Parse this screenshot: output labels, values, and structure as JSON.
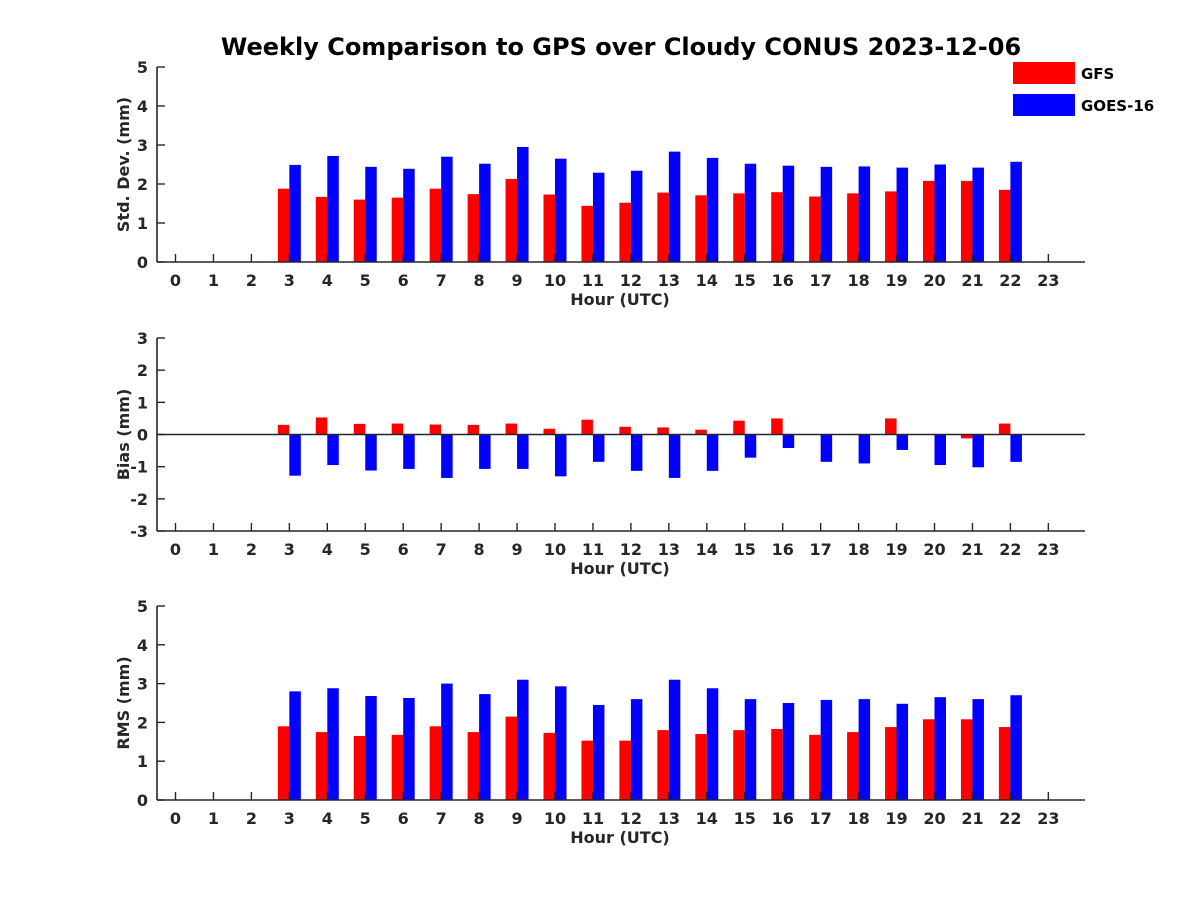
{
  "figure": {
    "title": "Weekly Comparison to GPS over Cloudy CONUS 2023-12-06"
  },
  "legend": {
    "position": "top-right",
    "items": [
      {
        "label": "GFS",
        "color": "#ff0000"
      },
      {
        "label": "GOES-16",
        "color": "#0000ff"
      }
    ]
  },
  "chart_data": [
    {
      "type": "bar",
      "title": "Weekly Comparison to GPS over Cloudy CONUS 2023-12-06",
      "xlabel": "Hour (UTC)",
      "ylabel": "Std. Dev. (mm)",
      "ylim": [
        0,
        5
      ],
      "yticks": [
        0,
        1,
        2,
        3,
        4,
        5
      ],
      "categories": [
        "0",
        "1",
        "2",
        "3",
        "4",
        "5",
        "6",
        "7",
        "8",
        "9",
        "10",
        "11",
        "12",
        "13",
        "14",
        "15",
        "16",
        "17",
        "18",
        "19",
        "20",
        "21",
        "22",
        "23"
      ],
      "series": [
        {
          "name": "GFS",
          "color": "#ff0000",
          "values": [
            null,
            null,
            null,
            1.88,
            1.67,
            1.6,
            1.65,
            1.88,
            1.74,
            2.13,
            1.73,
            1.44,
            1.52,
            1.78,
            1.71,
            1.76,
            1.79,
            1.68,
            1.76,
            1.81,
            2.08,
            2.08,
            1.85,
            null
          ]
        },
        {
          "name": "GOES-16",
          "color": "#0000ff",
          "values": [
            null,
            null,
            null,
            2.49,
            2.72,
            2.44,
            2.39,
            2.7,
            2.52,
            2.95,
            2.65,
            2.29,
            2.34,
            2.83,
            2.67,
            2.52,
            2.47,
            2.44,
            2.45,
            2.42,
            2.5,
            2.42,
            2.57,
            null
          ]
        }
      ]
    },
    {
      "type": "bar",
      "xlabel": "Hour (UTC)",
      "ylabel": "Bias (mm)",
      "ylim": [
        -3,
        3
      ],
      "yticks": [
        -3,
        -2,
        -1,
        0,
        1,
        2,
        3
      ],
      "zero_line": true,
      "categories": [
        "0",
        "1",
        "2",
        "3",
        "4",
        "5",
        "6",
        "7",
        "8",
        "9",
        "10",
        "11",
        "12",
        "13",
        "14",
        "15",
        "16",
        "17",
        "18",
        "19",
        "20",
        "21",
        "22",
        "23"
      ],
      "series": [
        {
          "name": "GFS",
          "color": "#ff0000",
          "values": [
            null,
            null,
            null,
            0.3,
            0.53,
            0.33,
            0.34,
            0.31,
            0.3,
            0.34,
            0.18,
            0.46,
            0.24,
            0.22,
            0.15,
            0.43,
            0.5,
            0.0,
            0.0,
            0.5,
            0.0,
            -0.12,
            0.34,
            null
          ]
        },
        {
          "name": "GOES-16",
          "color": "#0000ff",
          "values": [
            null,
            null,
            null,
            -1.28,
            -0.95,
            -1.12,
            -1.07,
            -1.35,
            -1.07,
            -1.07,
            -1.3,
            -0.85,
            -1.13,
            -1.35,
            -1.13,
            -0.72,
            -0.42,
            -0.85,
            -0.9,
            -0.48,
            -0.95,
            -1.02,
            -0.85,
            null
          ]
        }
      ]
    },
    {
      "type": "bar",
      "xlabel": "Hour (UTC)",
      "ylabel": "RMS (mm)",
      "ylim": [
        0,
        5
      ],
      "yticks": [
        0,
        1,
        2,
        3,
        4,
        5
      ],
      "categories": [
        "0",
        "1",
        "2",
        "3",
        "4",
        "5",
        "6",
        "7",
        "8",
        "9",
        "10",
        "11",
        "12",
        "13",
        "14",
        "15",
        "16",
        "17",
        "18",
        "19",
        "20",
        "21",
        "22",
        "23"
      ],
      "series": [
        {
          "name": "GFS",
          "color": "#ff0000",
          "values": [
            null,
            null,
            null,
            1.9,
            1.75,
            1.65,
            1.68,
            1.9,
            1.75,
            2.15,
            1.73,
            1.53,
            1.53,
            1.8,
            1.7,
            1.8,
            1.83,
            1.68,
            1.75,
            1.88,
            2.08,
            2.08,
            1.88,
            null
          ]
        },
        {
          "name": "GOES-16",
          "color": "#0000ff",
          "values": [
            null,
            null,
            null,
            2.8,
            2.88,
            2.68,
            2.63,
            3.0,
            2.73,
            3.1,
            2.93,
            2.45,
            2.6,
            3.1,
            2.88,
            2.6,
            2.5,
            2.58,
            2.6,
            2.48,
            2.65,
            2.6,
            2.7,
            null
          ]
        }
      ]
    }
  ]
}
